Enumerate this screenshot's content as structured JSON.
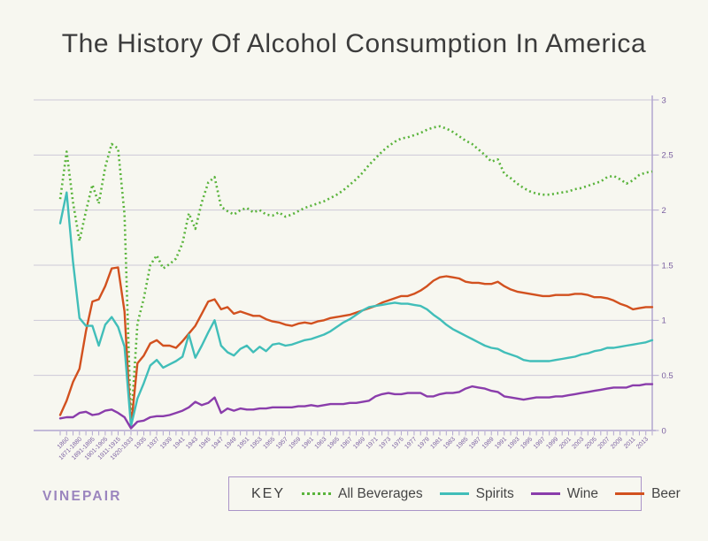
{
  "page": {
    "title": "The History Of Alcohol Consumption In America",
    "brand": "VINEPAIR",
    "background": "#f7f7f0",
    "title_color": "#3c3c3c",
    "brand_color": "#9b85be"
  },
  "legend": {
    "key_label": "KEY",
    "border_color": "#aa94c8",
    "text_color": "#454545"
  },
  "axes": {
    "axis_color": "#b2a6cf",
    "grid_color": "#cdc9d8",
    "tick_label_color": "#7a5fa0",
    "y_tick_labels": [
      "0",
      "0.5",
      "1",
      "1.5",
      "2",
      "2.5",
      "3"
    ],
    "y_axis_side": "right",
    "x_label_note": "labels shown on alternate data points, rotated 45 degrees"
  },
  "chart_data": {
    "type": "line",
    "title": "The History Of Alcohol Consumption In America",
    "xlabel": "",
    "ylabel": "",
    "ylim": [
      0,
      3
    ],
    "yticks": [
      0,
      0.5,
      1,
      1.5,
      2,
      2.5,
      3
    ],
    "grid": true,
    "legend_position": "bottom",
    "categories": [
      "1850",
      "1860",
      "1870",
      "1871-1880",
      "1881-1890",
      "1891-1895",
      "1896-1900",
      "1901-1905",
      "1906-1910",
      "1911-1915",
      "1916-1919",
      "1920-1933",
      "1934",
      "1935",
      "1936",
      "1937",
      "1938",
      "1939",
      "1940",
      "1941",
      "1942",
      "1943",
      "1944",
      "1945",
      "1946",
      "1947",
      "1948",
      "1949",
      "1950",
      "1951",
      "1952",
      "1953",
      "1954",
      "1955",
      "1956",
      "1957",
      "1958",
      "1959",
      "1960",
      "1961",
      "1962",
      "1963",
      "1964",
      "1965",
      "1966",
      "1967",
      "1968",
      "1969",
      "1970",
      "1971",
      "1972",
      "1973",
      "1974",
      "1975",
      "1976",
      "1977",
      "1978",
      "1979",
      "1980",
      "1981",
      "1982",
      "1983",
      "1984",
      "1985",
      "1986",
      "1987",
      "1988",
      "1989",
      "1990",
      "1991",
      "1992",
      "1993",
      "1994",
      "1995",
      "1996",
      "1997",
      "1998",
      "1999",
      "2000",
      "2001",
      "2002",
      "2003",
      "2004",
      "2005",
      "2006",
      "2007",
      "2008",
      "2009",
      "2010",
      "2011",
      "2012",
      "2013",
      "2014"
    ],
    "series": [
      {
        "name": "All Beverages",
        "color": "#5ab43c",
        "line_style": "dotted",
        "values": [
          2.1,
          2.53,
          2.07,
          1.72,
          1.99,
          2.23,
          2.06,
          2.39,
          2.6,
          2.56,
          1.96,
          0.05,
          0.97,
          1.2,
          1.5,
          1.59,
          1.47,
          1.51,
          1.56,
          1.7,
          1.97,
          1.83,
          2.07,
          2.25,
          2.3,
          2.03,
          1.99,
          1.96,
          2.0,
          2.02,
          1.98,
          2.0,
          1.96,
          1.95,
          1.98,
          1.94,
          1.96,
          1.99,
          2.02,
          2.04,
          2.06,
          2.08,
          2.11,
          2.14,
          2.18,
          2.23,
          2.28,
          2.34,
          2.41,
          2.47,
          2.53,
          2.58,
          2.62,
          2.65,
          2.66,
          2.68,
          2.7,
          2.73,
          2.75,
          2.76,
          2.74,
          2.71,
          2.67,
          2.63,
          2.6,
          2.55,
          2.5,
          2.44,
          2.46,
          2.33,
          2.29,
          2.24,
          2.2,
          2.17,
          2.15,
          2.14,
          2.14,
          2.15,
          2.16,
          2.17,
          2.19,
          2.2,
          2.22,
          2.24,
          2.26,
          2.3,
          2.31,
          2.28,
          2.24,
          2.27,
          2.32,
          2.34,
          2.35
        ]
      },
      {
        "name": "Spirits",
        "color": "#41beb9",
        "line_style": "solid",
        "values": [
          1.88,
          2.16,
          1.53,
          1.02,
          0.95,
          0.95,
          0.77,
          0.96,
          1.03,
          0.94,
          0.76,
          0.04,
          0.29,
          0.43,
          0.59,
          0.64,
          0.57,
          0.6,
          0.63,
          0.67,
          0.87,
          0.66,
          0.77,
          0.89,
          1.0,
          0.77,
          0.71,
          0.68,
          0.74,
          0.77,
          0.71,
          0.76,
          0.72,
          0.78,
          0.79,
          0.77,
          0.78,
          0.8,
          0.82,
          0.83,
          0.85,
          0.87,
          0.9,
          0.94,
          0.98,
          1.01,
          1.05,
          1.09,
          1.12,
          1.13,
          1.14,
          1.15,
          1.16,
          1.15,
          1.15,
          1.14,
          1.13,
          1.1,
          1.05,
          1.01,
          0.96,
          0.92,
          0.89,
          0.86,
          0.83,
          0.8,
          0.77,
          0.75,
          0.74,
          0.71,
          0.69,
          0.67,
          0.64,
          0.63,
          0.63,
          0.63,
          0.63,
          0.64,
          0.65,
          0.66,
          0.67,
          0.69,
          0.7,
          0.72,
          0.73,
          0.75,
          0.75,
          0.76,
          0.77,
          0.78,
          0.79,
          0.8,
          0.82
        ]
      },
      {
        "name": "Wine",
        "color": "#8a3dab",
        "line_style": "solid",
        "values": [
          0.11,
          0.12,
          0.12,
          0.16,
          0.17,
          0.14,
          0.15,
          0.18,
          0.19,
          0.16,
          0.12,
          0.02,
          0.08,
          0.09,
          0.12,
          0.13,
          0.13,
          0.14,
          0.16,
          0.18,
          0.21,
          0.26,
          0.23,
          0.25,
          0.3,
          0.16,
          0.2,
          0.18,
          0.2,
          0.19,
          0.19,
          0.2,
          0.2,
          0.21,
          0.21,
          0.21,
          0.21,
          0.22,
          0.22,
          0.23,
          0.22,
          0.23,
          0.24,
          0.24,
          0.24,
          0.25,
          0.25,
          0.26,
          0.27,
          0.31,
          0.33,
          0.34,
          0.33,
          0.33,
          0.34,
          0.34,
          0.34,
          0.31,
          0.31,
          0.33,
          0.34,
          0.34,
          0.35,
          0.38,
          0.4,
          0.39,
          0.38,
          0.36,
          0.35,
          0.31,
          0.3,
          0.29,
          0.28,
          0.29,
          0.3,
          0.3,
          0.3,
          0.31,
          0.31,
          0.32,
          0.33,
          0.34,
          0.35,
          0.36,
          0.37,
          0.38,
          0.39,
          0.39,
          0.39,
          0.41,
          0.41,
          0.42,
          0.42
        ]
      },
      {
        "name": "Beer",
        "color": "#d2511f",
        "line_style": "solid",
        "values": [
          0.14,
          0.27,
          0.44,
          0.56,
          0.9,
          1.17,
          1.19,
          1.31,
          1.47,
          1.48,
          1.08,
          0.03,
          0.61,
          0.68,
          0.79,
          0.82,
          0.77,
          0.77,
          0.75,
          0.81,
          0.88,
          0.95,
          1.06,
          1.17,
          1.19,
          1.1,
          1.12,
          1.06,
          1.08,
          1.06,
          1.04,
          1.04,
          1.01,
          0.99,
          0.98,
          0.96,
          0.95,
          0.97,
          0.98,
          0.97,
          0.99,
          1.0,
          1.02,
          1.03,
          1.04,
          1.05,
          1.07,
          1.09,
          1.11,
          1.13,
          1.16,
          1.18,
          1.2,
          1.22,
          1.22,
          1.24,
          1.27,
          1.31,
          1.36,
          1.39,
          1.4,
          1.39,
          1.38,
          1.35,
          1.34,
          1.34,
          1.33,
          1.33,
          1.35,
          1.31,
          1.28,
          1.26,
          1.25,
          1.24,
          1.23,
          1.22,
          1.22,
          1.23,
          1.23,
          1.23,
          1.24,
          1.24,
          1.23,
          1.21,
          1.21,
          1.2,
          1.18,
          1.15,
          1.13,
          1.1,
          1.11,
          1.12,
          1.12
        ]
      }
    ]
  }
}
